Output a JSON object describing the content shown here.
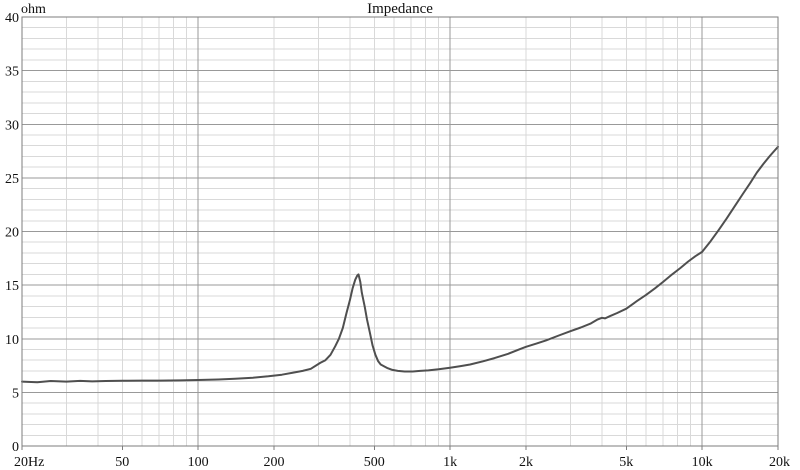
{
  "chart_data": {
    "type": "line",
    "title": "Impedance",
    "ylabel": "ohm",
    "xlabel": "",
    "x_scale": "log",
    "x_range": [
      20,
      20000
    ],
    "y_range": [
      0,
      40
    ],
    "y_major_step": 5,
    "y_minor_step": 1,
    "grid": true,
    "legend": "none",
    "x_major_lines": [
      100,
      1000,
      10000
    ],
    "x_ticks": [
      {
        "f": 20,
        "label": "20Hz"
      },
      {
        "f": 50,
        "label": "50"
      },
      {
        "f": 100,
        "label": "100"
      },
      {
        "f": 200,
        "label": "200"
      },
      {
        "f": 500,
        "label": "500"
      },
      {
        "f": 1000,
        "label": "1k"
      },
      {
        "f": 2000,
        "label": "2k"
      },
      {
        "f": 5000,
        "label": "5k"
      },
      {
        "f": 10000,
        "label": "10k"
      },
      {
        "f": 20000,
        "label": "20k"
      }
    ],
    "y_ticks": [
      0,
      5,
      10,
      15,
      20,
      25,
      30,
      35,
      40
    ],
    "series": [
      {
        "name": "impedance",
        "unit": "ohm",
        "points": [
          [
            20,
            6.0
          ],
          [
            23,
            5.95
          ],
          [
            26,
            6.06
          ],
          [
            30,
            6.0
          ],
          [
            34,
            6.07
          ],
          [
            38,
            6.02
          ],
          [
            43,
            6.06
          ],
          [
            50,
            6.08
          ],
          [
            60,
            6.1
          ],
          [
            70,
            6.1
          ],
          [
            85,
            6.12
          ],
          [
            100,
            6.15
          ],
          [
            120,
            6.2
          ],
          [
            140,
            6.27
          ],
          [
            165,
            6.37
          ],
          [
            190,
            6.5
          ],
          [
            215,
            6.65
          ],
          [
            240,
            6.85
          ],
          [
            260,
            7.0
          ],
          [
            280,
            7.2
          ],
          [
            305,
            7.75
          ],
          [
            320,
            8.0
          ],
          [
            335,
            8.5
          ],
          [
            350,
            9.3
          ],
          [
            362,
            10.0
          ],
          [
            375,
            11.0
          ],
          [
            388,
            12.4
          ],
          [
            400,
            13.6
          ],
          [
            410,
            14.7
          ],
          [
            420,
            15.5
          ],
          [
            428,
            15.9
          ],
          [
            433,
            16.0
          ],
          [
            440,
            15.3
          ],
          [
            446,
            14.3
          ],
          [
            458,
            13.0
          ],
          [
            468,
            11.8
          ],
          [
            480,
            10.6
          ],
          [
            492,
            9.4
          ],
          [
            505,
            8.5
          ],
          [
            518,
            7.9
          ],
          [
            530,
            7.6
          ],
          [
            545,
            7.45
          ],
          [
            565,
            7.25
          ],
          [
            590,
            7.1
          ],
          [
            620,
            7.0
          ],
          [
            660,
            6.95
          ],
          [
            710,
            6.95
          ],
          [
            760,
            7.0
          ],
          [
            820,
            7.05
          ],
          [
            900,
            7.15
          ],
          [
            1000,
            7.3
          ],
          [
            1100,
            7.45
          ],
          [
            1200,
            7.6
          ],
          [
            1350,
            7.9
          ],
          [
            1500,
            8.2
          ],
          [
            1700,
            8.6
          ],
          [
            1900,
            9.05
          ],
          [
            2000,
            9.25
          ],
          [
            2200,
            9.55
          ],
          [
            2400,
            9.85
          ],
          [
            2700,
            10.3
          ],
          [
            3000,
            10.7
          ],
          [
            3300,
            11.05
          ],
          [
            3600,
            11.4
          ],
          [
            3850,
            11.8
          ],
          [
            4000,
            11.95
          ],
          [
            4120,
            11.9
          ],
          [
            4300,
            12.1
          ],
          [
            4600,
            12.4
          ],
          [
            5000,
            12.8
          ],
          [
            5500,
            13.5
          ],
          [
            6000,
            14.1
          ],
          [
            6500,
            14.7
          ],
          [
            7000,
            15.3
          ],
          [
            7600,
            16.0
          ],
          [
            8200,
            16.6
          ],
          [
            8800,
            17.2
          ],
          [
            9400,
            17.7
          ],
          [
            10000,
            18.1
          ],
          [
            10800,
            19.1
          ],
          [
            11600,
            20.1
          ],
          [
            12500,
            21.2
          ],
          [
            13500,
            22.4
          ],
          [
            14500,
            23.5
          ],
          [
            15500,
            24.5
          ],
          [
            16500,
            25.5
          ],
          [
            17500,
            26.3
          ],
          [
            18500,
            27.0
          ],
          [
            19300,
            27.5
          ],
          [
            20000,
            27.9
          ]
        ]
      }
    ],
    "colors": {
      "curve": "#4f4f4f",
      "grid_minor": "#d9d9d9",
      "grid_major": "#999999",
      "border": "#7d7d7d",
      "text": "#111111",
      "background": "#ffffff"
    }
  }
}
